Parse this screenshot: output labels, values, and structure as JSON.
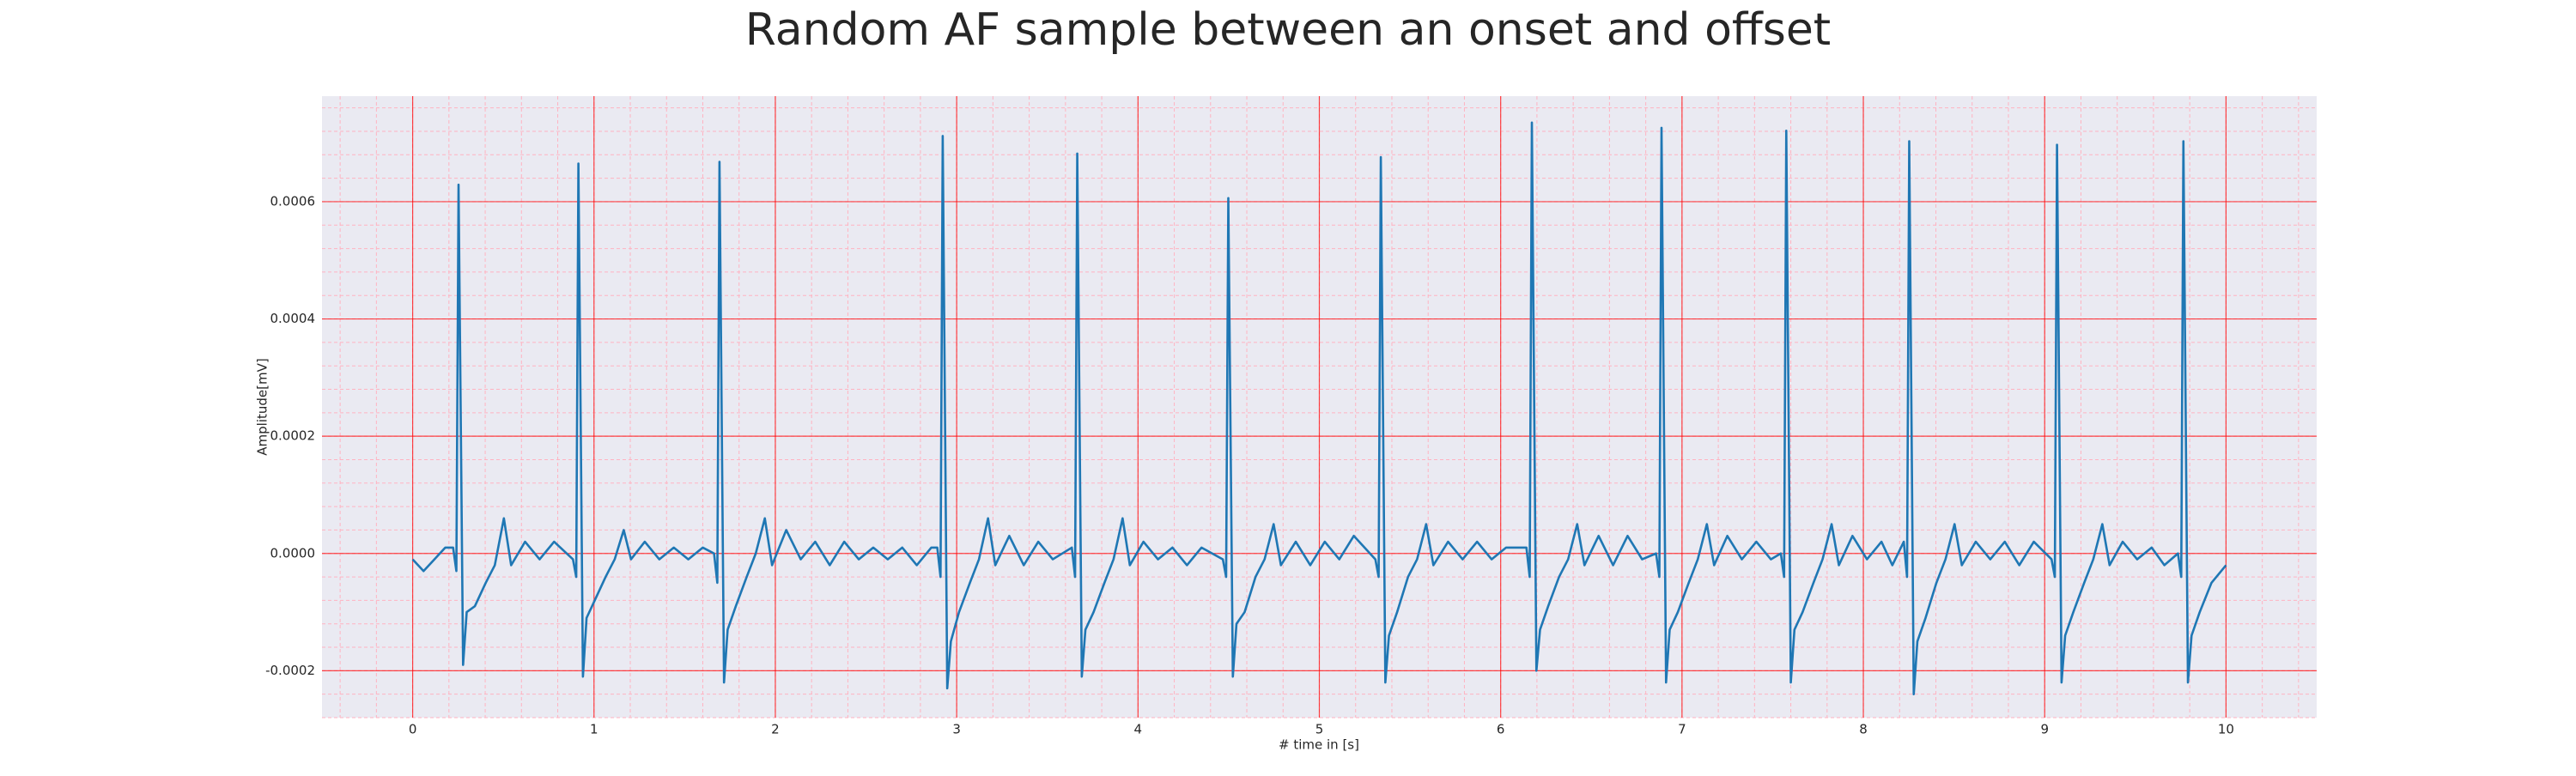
{
  "chart_data": {
    "type": "line",
    "title": "Random AF sample between an onset and offset",
    "xlabel": "# time in [s]",
    "ylabel": "Amplitude[mV]",
    "color": "#1f77b4",
    "background": "#eaeaf2",
    "grid": true,
    "grid_color": "#ff0000",
    "minor_grid": true,
    "minor_grid_color": "#ffb3c1",
    "xlim": [
      -0.5,
      10.5
    ],
    "ylim": [
      -0.00028,
      0.00078
    ],
    "xticks": [
      0,
      1,
      2,
      3,
      4,
      5,
      6,
      7,
      8,
      9,
      10
    ],
    "yticks": [
      -0.0002,
      {
        "value": 0,
        "label": "0.0000"
      },
      0.0002,
      0.0004,
      0.0006
    ],
    "x": [
      0,
      0.06,
      0.12,
      0.18,
      0.223,
      0.241,
      0.253,
      0.278,
      0.298,
      0.343,
      0.403,
      0.453,
      0.503,
      0.543,
      0.62,
      0.7,
      0.78,
      0.884,
      0.902,
      0.914,
      0.939,
      0.959,
      1.004,
      1.064,
      1.114,
      1.164,
      1.204,
      1.28,
      1.36,
      1.44,
      1.52,
      1.6,
      1.662,
      1.68,
      1.692,
      1.717,
      1.737,
      1.782,
      1.842,
      1.892,
      1.942,
      1.982,
      2.06,
      2.14,
      2.22,
      2.3,
      2.38,
      2.46,
      2.54,
      2.62,
      2.7,
      2.78,
      2.86,
      2.893,
      2.911,
      2.923,
      2.948,
      2.968,
      3.013,
      3.073,
      3.123,
      3.173,
      3.213,
      3.29,
      3.37,
      3.45,
      3.53,
      3.635,
      3.653,
      3.665,
      3.69,
      3.71,
      3.755,
      3.815,
      3.865,
      3.915,
      3.955,
      4.03,
      4.11,
      4.19,
      4.27,
      4.35,
      4.468,
      4.486,
      4.498,
      4.523,
      4.543,
      4.588,
      4.648,
      4.698,
      4.748,
      4.788,
      4.87,
      4.95,
      5.03,
      5.11,
      5.19,
      5.309,
      5.327,
      5.339,
      5.364,
      5.384,
      5.429,
      5.489,
      5.539,
      5.589,
      5.629,
      5.71,
      5.79,
      5.87,
      5.95,
      6.03,
      6.142,
      6.16,
      6.172,
      6.197,
      6.217,
      6.262,
      6.322,
      6.372,
      6.422,
      6.462,
      6.54,
      6.62,
      6.7,
      6.78,
      6.857,
      6.875,
      6.887,
      6.912,
      6.932,
      6.977,
      7.037,
      7.087,
      7.137,
      7.177,
      7.25,
      7.33,
      7.41,
      7.49,
      7.545,
      7.563,
      7.575,
      7.6,
      7.62,
      7.665,
      7.725,
      7.775,
      7.825,
      7.865,
      7.94,
      8.02,
      8.1,
      8.16,
      8.223,
      8.241,
      8.253,
      8.278,
      8.298,
      8.343,
      8.403,
      8.453,
      8.503,
      8.543,
      8.62,
      8.7,
      8.78,
      8.86,
      8.94,
      9.038,
      9.056,
      9.068,
      9.093,
      9.113,
      9.158,
      9.218,
      9.268,
      9.318,
      9.358,
      9.43,
      9.51,
      9.59,
      9.66,
      9.735,
      9.753,
      9.765,
      9.79,
      9.81,
      9.855,
      9.92,
      10.0
    ],
    "values": [
      -1e-05,
      -3e-05,
      -1e-05,
      1e-05,
      1e-05,
      -3e-05,
      0.000629,
      -0.00019,
      -0.0001,
      -9e-05,
      -5e-05,
      -2e-05,
      6e-05,
      -2e-05,
      2e-05,
      -1e-05,
      2e-05,
      -1e-05,
      -4e-05,
      0.000665,
      -0.00021,
      -0.00011,
      -8e-05,
      -4e-05,
      -1e-05,
      4e-05,
      -1e-05,
      2e-05,
      -1e-05,
      1e-05,
      -1e-05,
      1e-05,
      0,
      -5e-05,
      0.000668,
      -0.00022,
      -0.00013,
      -9e-05,
      -4e-05,
      0,
      6e-05,
      -2e-05,
      4e-05,
      -1e-05,
      2e-05,
      -2e-05,
      2e-05,
      -1e-05,
      1e-05,
      -1e-05,
      1e-05,
      -2e-05,
      1e-05,
      1e-05,
      -4e-05,
      0.000712,
      -0.00023,
      -0.00015,
      -0.0001,
      -5e-05,
      -1e-05,
      6e-05,
      -2e-05,
      3e-05,
      -2e-05,
      2e-05,
      -1e-05,
      1e-05,
      -4e-05,
      0.000682,
      -0.00021,
      -0.00013,
      -0.0001,
      -5e-05,
      -1e-05,
      6e-05,
      -2e-05,
      2e-05,
      -1e-05,
      1e-05,
      -2e-05,
      1e-05,
      -1e-05,
      -4e-05,
      0.000606,
      -0.00021,
      -0.00012,
      -0.0001,
      -4e-05,
      -1e-05,
      5e-05,
      -2e-05,
      2e-05,
      -2e-05,
      2e-05,
      -1e-05,
      3e-05,
      -1e-05,
      -4e-05,
      0.000676,
      -0.00022,
      -0.00014,
      -0.0001,
      -4e-05,
      -1e-05,
      5e-05,
      -2e-05,
      2e-05,
      -1e-05,
      2e-05,
      -1e-05,
      1e-05,
      1e-05,
      -4e-05,
      0.000735,
      -0.0002,
      -0.00013,
      -9e-05,
      -4e-05,
      -1e-05,
      5e-05,
      -2e-05,
      3e-05,
      -2e-05,
      3e-05,
      -1e-05,
      0,
      -4e-05,
      0.000726,
      -0.00022,
      -0.00013,
      -0.0001,
      -5e-05,
      -1e-05,
      5e-05,
      -2e-05,
      3e-05,
      -1e-05,
      2e-05,
      -1e-05,
      0,
      -4e-05,
      0.000721,
      -0.00022,
      -0.00013,
      -0.0001,
      -5e-05,
      -1e-05,
      5e-05,
      -2e-05,
      3e-05,
      -1e-05,
      2e-05,
      -2e-05,
      2e-05,
      -4e-05,
      0.000703,
      -0.00024,
      -0.00015,
      -0.00011,
      -5e-05,
      -1e-05,
      5e-05,
      -2e-05,
      2e-05,
      -1e-05,
      2e-05,
      -2e-05,
      2e-05,
      -1e-05,
      -4e-05,
      0.000697,
      -0.00022,
      -0.00014,
      -0.0001,
      -5e-05,
      -1e-05,
      5e-05,
      -2e-05,
      2e-05,
      -1e-05,
      1e-05,
      -2e-05,
      0,
      -4e-05,
      0.000703,
      -0.00022,
      -0.00014,
      -0.0001,
      -5e-05,
      -2e-05
    ]
  }
}
